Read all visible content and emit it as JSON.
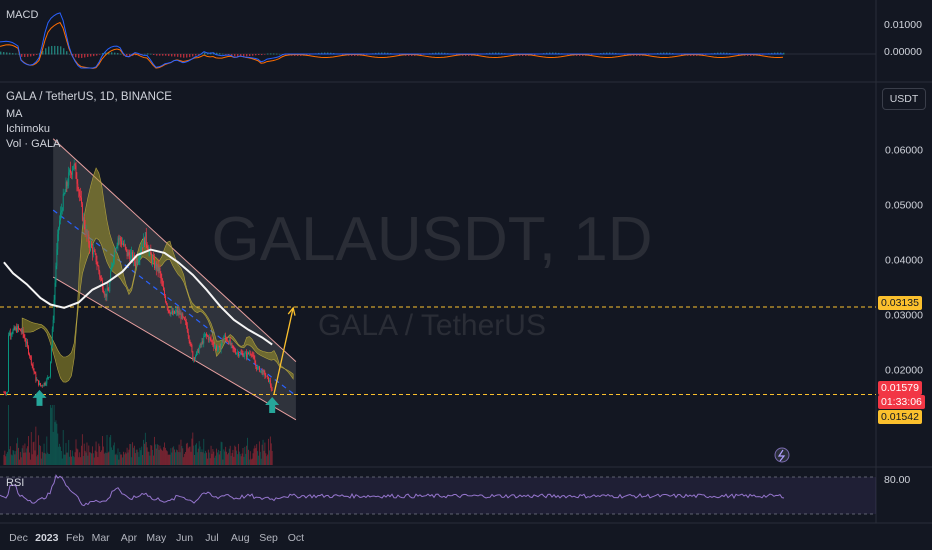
{
  "macd": {
    "label": "MACD",
    "ticks": [
      "0.01000",
      "0.00000"
    ]
  },
  "header": {
    "symbol": "GALA / TetherUS, 1D, BINANCE",
    "indicators": [
      "MA",
      "Ichimoku",
      "Vol · GALA"
    ],
    "currency_button": "USDT"
  },
  "watermark": {
    "ticker": "GALAUSDT, 1D",
    "pair": "GALA / TetherUS"
  },
  "rsi": {
    "label": "RSI",
    "level": "80.00"
  },
  "price_tags": {
    "resistance": "0.03135",
    "current_price": "0.01579",
    "countdown": "01:33:06",
    "support": "0.01542"
  },
  "colors": {
    "current": "#f23645",
    "level": "#fbc02d",
    "up": "#089981",
    "down": "#f23645",
    "ma": "#f5f5f5",
    "cloud": "#8a8a2e"
  },
  "chart_data": {
    "type": "candlestick",
    "symbol": "GALA/USDT",
    "timeframe": "1D",
    "exchange": "BINANCE",
    "x_ticks": [
      "Dec",
      "2023",
      "Feb",
      "Mar",
      "Apr",
      "May",
      "Jun",
      "Jul",
      "Aug",
      "Sep",
      "Oct"
    ],
    "y_ticks": [
      0.06,
      0.05,
      0.04,
      0.03,
      0.02
    ],
    "y_tick_labels": [
      "0.06000",
      "0.05000",
      "0.04000",
      "0.03000",
      "0.02000"
    ],
    "ylim": [
      0.0093,
      0.069
    ],
    "close_series": [
      [
        "2022-11-20",
        0.0265
      ],
      [
        "2022-11-25",
        0.027
      ],
      [
        "2022-11-30",
        0.0274
      ],
      [
        "2022-12-05",
        0.0268
      ],
      [
        "2022-12-10",
        0.0245
      ],
      [
        "2022-12-15",
        0.0215
      ],
      [
        "2022-12-20",
        0.0182
      ],
      [
        "2022-12-25",
        0.017
      ],
      [
        "2022-12-30",
        0.0175
      ],
      [
        "2023-01-04",
        0.019
      ],
      [
        "2023-01-08",
        0.0295
      ],
      [
        "2023-01-11",
        0.039
      ],
      [
        "2023-01-14",
        0.046
      ],
      [
        "2023-01-18",
        0.05
      ],
      [
        "2023-01-22",
        0.053
      ],
      [
        "2023-01-26",
        0.0555
      ],
      [
        "2023-01-30",
        0.0575
      ],
      [
        "2023-02-04",
        0.054
      ],
      [
        "2023-02-09",
        0.048
      ],
      [
        "2023-02-14",
        0.044
      ],
      [
        "2023-02-19",
        0.042
      ],
      [
        "2023-02-24",
        0.04
      ],
      [
        "2023-03-01",
        0.0365
      ],
      [
        "2023-03-06",
        0.0335
      ],
      [
        "2023-03-10",
        0.0345
      ],
      [
        "2023-03-15",
        0.041
      ],
      [
        "2023-03-20",
        0.044
      ],
      [
        "2023-03-25",
        0.043
      ],
      [
        "2023-03-30",
        0.041
      ],
      [
        "2023-04-04",
        0.0405
      ],
      [
        "2023-04-09",
        0.0395
      ],
      [
        "2023-04-14",
        0.042
      ],
      [
        "2023-04-19",
        0.044
      ],
      [
        "2023-04-24",
        0.041
      ],
      [
        "2023-04-29",
        0.039
      ],
      [
        "2023-05-04",
        0.038
      ],
      [
        "2023-05-09",
        0.034
      ],
      [
        "2023-05-14",
        0.031
      ],
      [
        "2023-05-19",
        0.03
      ],
      [
        "2023-05-24",
        0.0305
      ],
      [
        "2023-05-29",
        0.0295
      ],
      [
        "2023-06-03",
        0.028
      ],
      [
        "2023-06-07",
        0.025
      ],
      [
        "2023-06-10",
        0.022
      ],
      [
        "2023-06-14",
        0.0228
      ],
      [
        "2023-06-19",
        0.0245
      ],
      [
        "2023-06-24",
        0.0262
      ],
      [
        "2023-06-29",
        0.0255
      ],
      [
        "2023-07-04",
        0.0242
      ],
      [
        "2023-07-09",
        0.0236
      ],
      [
        "2023-07-14",
        0.026
      ],
      [
        "2023-07-19",
        0.0252
      ],
      [
        "2023-07-24",
        0.0236
      ],
      [
        "2023-07-29",
        0.023
      ],
      [
        "2023-08-03",
        0.0228
      ],
      [
        "2023-08-08",
        0.0226
      ],
      [
        "2023-08-13",
        0.0232
      ],
      [
        "2023-08-18",
        0.0205
      ],
      [
        "2023-08-23",
        0.0198
      ],
      [
        "2023-08-28",
        0.019
      ],
      [
        "2023-09-02",
        0.0178
      ],
      [
        "2023-09-05",
        0.0158
      ]
    ],
    "moving_average": [
      [
        "2022-11-15",
        0.0395
      ],
      [
        "2022-11-25",
        0.0375
      ],
      [
        "2022-12-10",
        0.0355
      ],
      [
        "2022-12-25",
        0.033
      ],
      [
        "2023-01-05",
        0.0318
      ],
      [
        "2023-01-20",
        0.0312
      ],
      [
        "2023-02-05",
        0.0322
      ],
      [
        "2023-02-20",
        0.0345
      ],
      [
        "2023-03-08",
        0.0358
      ],
      [
        "2023-03-25",
        0.0378
      ],
      [
        "2023-04-10",
        0.0408
      ],
      [
        "2023-04-25",
        0.0418
      ],
      [
        "2023-05-10",
        0.0412
      ],
      [
        "2023-05-25",
        0.0395
      ],
      [
        "2023-06-10",
        0.0372
      ],
      [
        "2023-06-25",
        0.0345
      ],
      [
        "2023-07-10",
        0.0315
      ],
      [
        "2023-07-25",
        0.029
      ],
      [
        "2023-08-10",
        0.0272
      ],
      [
        "2023-08-25",
        0.0258
      ],
      [
        "2023-09-05",
        0.0245
      ]
    ],
    "channel": {
      "upper": [
        [
          "2023-01-08",
          0.062
        ],
        [
          "2023-10-01",
          0.0214
        ]
      ],
      "lower": [
        [
          "2023-01-08",
          0.0368
        ],
        [
          "2023-10-01",
          0.0108
        ]
      ],
      "mid": [
        [
          "2023-01-08",
          0.049
        ],
        [
          "2023-10-01",
          0.0152
        ]
      ]
    },
    "horizontal_levels": [
      0.03135,
      0.01542
    ],
    "current_price": 0.01579,
    "projection": [
      [
        "2023-09-07",
        0.0155
      ],
      [
        "2023-09-28",
        0.0312
      ]
    ],
    "signal_arrows": [
      [
        "2022-12-24",
        0.0148
      ],
      [
        "2023-09-05",
        0.0135
      ]
    ]
  }
}
